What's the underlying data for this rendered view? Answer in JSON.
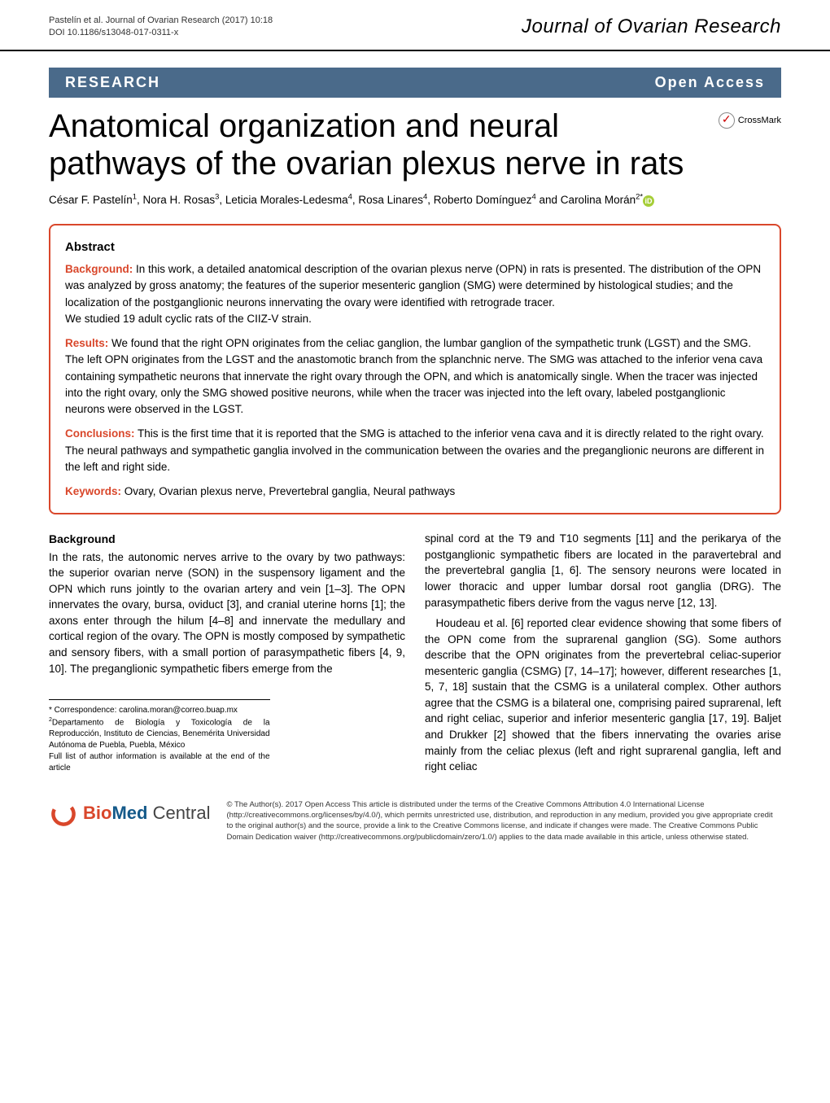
{
  "header": {
    "citation": "Pastelín et al. Journal of Ovarian Research (2017) 10:18",
    "doi": "DOI 10.1186/s13048-017-0311-x",
    "journal": "Journal of Ovarian Research"
  },
  "research_bar": {
    "left": "RESEARCH",
    "right": "Open Access"
  },
  "crossmark": "CrossMark",
  "title": "Anatomical organization and neural pathways of the ovarian plexus nerve in rats",
  "authors_html": "César F. Pastelín<sup>1</sup>, Nora H. Rosas<sup>3</sup>, Leticia Morales-Ledesma<sup>4</sup>, Rosa Linares<sup>4</sup>, Roberto Domínguez<sup>4</sup> and Carolina Morán<sup>2*</sup>",
  "abstract": {
    "heading": "Abstract",
    "background_label": "Background:",
    "background": " In this work, a detailed anatomical description of the ovarian plexus nerve (OPN) in rats is presented. The distribution of the OPN was analyzed by gross anatomy; the features of the superior mesenteric ganglion (SMG) were determined by histological studies; and the localization of the postganglionic neurons innervating the ovary were identified with retrograde tracer.",
    "methods": "We studied 19 adult cyclic rats of the CIIZ-V strain.",
    "results_label": "Results:",
    "results": " We found that the right OPN originates from the celiac ganglion, the lumbar ganglion of the sympathetic trunk (LGST) and the SMG. The left OPN originates from the LGST and the anastomotic branch from the splanchnic nerve. The SMG was attached to the inferior vena cava containing sympathetic neurons that innervate the right ovary through the OPN, and which is anatomically single. When the tracer was injected into the right ovary, only the SMG showed positive neurons, while when the tracer was injected into the left ovary, labeled postganglionic neurons were observed in the LGST.",
    "conclusions_label": "Conclusions:",
    "conclusions": " This is the first time that it is reported that the SMG is attached to the inferior vena cava and it is directly related to the right ovary. The neural pathways and sympathetic ganglia involved in the communication between the ovaries and the preganglionic neurons are different in the left and right side.",
    "keywords_label": "Keywords:",
    "keywords": " Ovary, Ovarian plexus nerve, Prevertebral ganglia, Neural pathways"
  },
  "body": {
    "heading": "Background",
    "col1": "In the rats, the autonomic nerves arrive to the ovary by two pathways: the superior ovarian nerve (SON) in the suspensory ligament and the OPN which runs jointly to the ovarian artery and vein [1–3]. The OPN innervates the ovary, bursa, oviduct [3], and cranial uterine horns [1]; the axons enter through the hilum [4–8] and innervate the medullary and cortical region of the ovary. The OPN is mostly composed by sympathetic and sensory fibers, with a small portion of parasympathetic fibers [4, 9, 10]. The preganglionic sympathetic fibers emerge from the",
    "col2a": "spinal cord at the T9 and T10 segments [11] and the perikarya of the postganglionic sympathetic fibers are located in the paravertebral and the prevertebral ganglia [1, 6]. The sensory neurons were located in lower thoracic and upper lumbar dorsal root ganglia (DRG). The parasympathetic fibers derive from the vagus nerve [12, 13].",
    "col2b": "Houdeau et al. [6] reported clear evidence showing that some fibers of the OPN come from the suprarenal ganglion (SG). Some authors describe that the OPN originates from the prevertebral celiac-superior mesenteric ganglia (CSMG) [7, 14–17]; however, different researches [1, 5, 7, 18] sustain that the CSMG is a unilateral complex. Other authors agree that the CSMG is a bilateral one, comprising paired suprarenal, left and right celiac, superior and inferior mesenteric ganglia [17, 19]. Baljet and Drukker [2] showed that the fibers innervating the ovaries arise mainly from the celiac plexus (left and right suprarenal ganglia, left and right celiac"
  },
  "footnote": {
    "line1": "* Correspondence: carolina.moran@correo.buap.mx",
    "line2_sup": "2",
    "line2": "Departamento de Biología y Toxicología de la Reproducción, Instituto de Ciencias, Benemérita Universidad Autónoma de Puebla, Puebla, México",
    "line3": "Full list of author information is available at the end of the article"
  },
  "footer": {
    "logo_bio": "Bio",
    "logo_med": "Med",
    "logo_central": " Central",
    "text": "© The Author(s). 2017 Open Access This article is distributed under the terms of the Creative Commons Attribution 4.0 International License (http://creativecommons.org/licenses/by/4.0/), which permits unrestricted use, distribution, and reproduction in any medium, provided you give appropriate credit to the original author(s) and the source, provide a link to the Creative Commons license, and indicate if changes were made. The Creative Commons Public Domain Dedication waiver (http://creativecommons.org/publicdomain/zero/1.0/) applies to the data made available in this article, unless otherwise stated."
  },
  "colors": {
    "accent_red": "#d9472b",
    "bar_blue": "#4a6a8a",
    "orcid_green": "#a6ce39",
    "bmc_blue": "#155a8a"
  }
}
